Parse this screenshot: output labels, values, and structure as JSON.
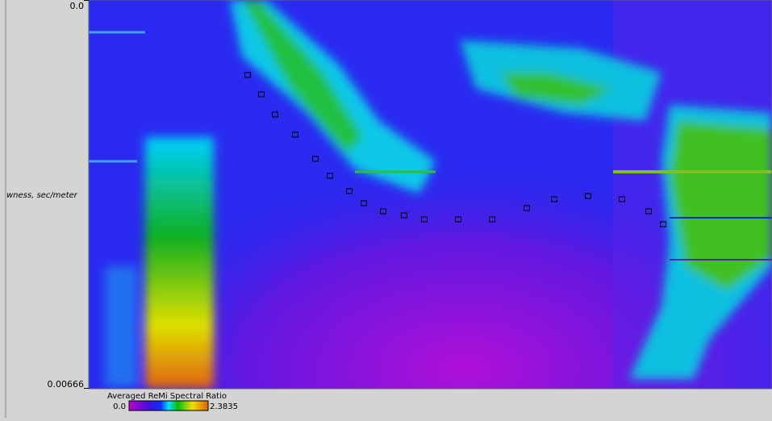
{
  "chart_data": {
    "type": "heatmap",
    "ylabel": "wness, sec/meter",
    "ylim": [
      0,
      0.00666
    ],
    "yticks": [
      {
        "value": 0,
        "label": "0.0"
      },
      0.00666
    ],
    "colorbar": {
      "title": "Averaged ReMi Spectral Ratio",
      "ticks": [
        {
          "value": 0,
          "label": "0.0"
        },
        2.3835
      ]
    }
  }
}
